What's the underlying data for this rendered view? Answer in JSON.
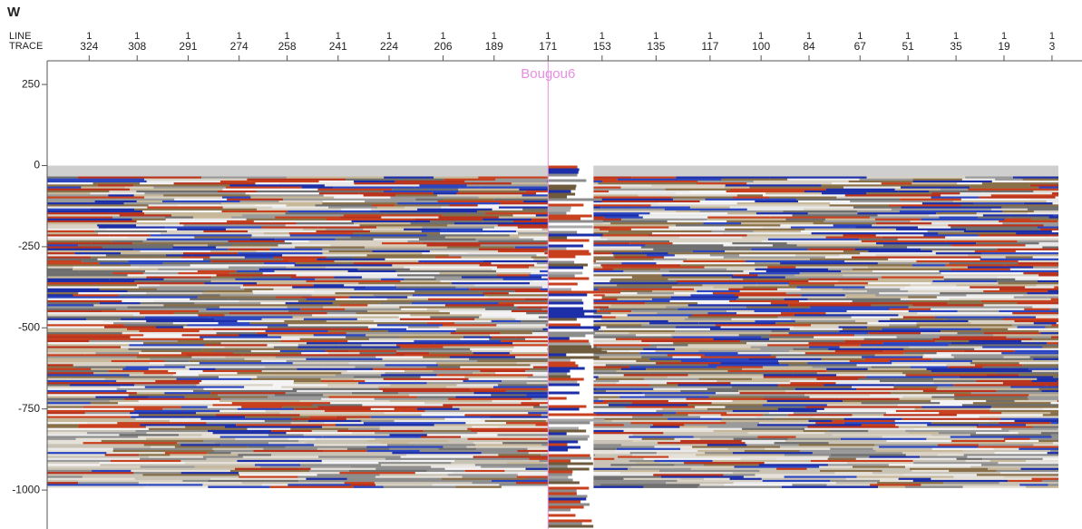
{
  "chart_data": {
    "type": "seismic",
    "title": "W",
    "x_row_labels": [
      "LINE",
      "TRACE"
    ],
    "line_numbers": [
      1,
      1,
      1,
      1,
      1,
      1,
      1,
      1,
      1,
      1,
      1,
      1,
      1,
      1,
      1,
      1,
      1,
      1,
      1,
      1
    ],
    "xticks": [
      324,
      308,
      291,
      274,
      258,
      241,
      224,
      206,
      189,
      171,
      153,
      135,
      117,
      100,
      84,
      67,
      51,
      35,
      19,
      3
    ],
    "xlim": [
      338,
      -7
    ],
    "ylim": [
      -1120,
      323
    ],
    "yticks": [
      250,
      0,
      -250,
      -500,
      -750,
      -1000
    ],
    "section": {
      "top": 0,
      "bottom": -990
    },
    "well": {
      "name": "Bougou6",
      "trace": 171,
      "color": "#e88ee0"
    }
  }
}
